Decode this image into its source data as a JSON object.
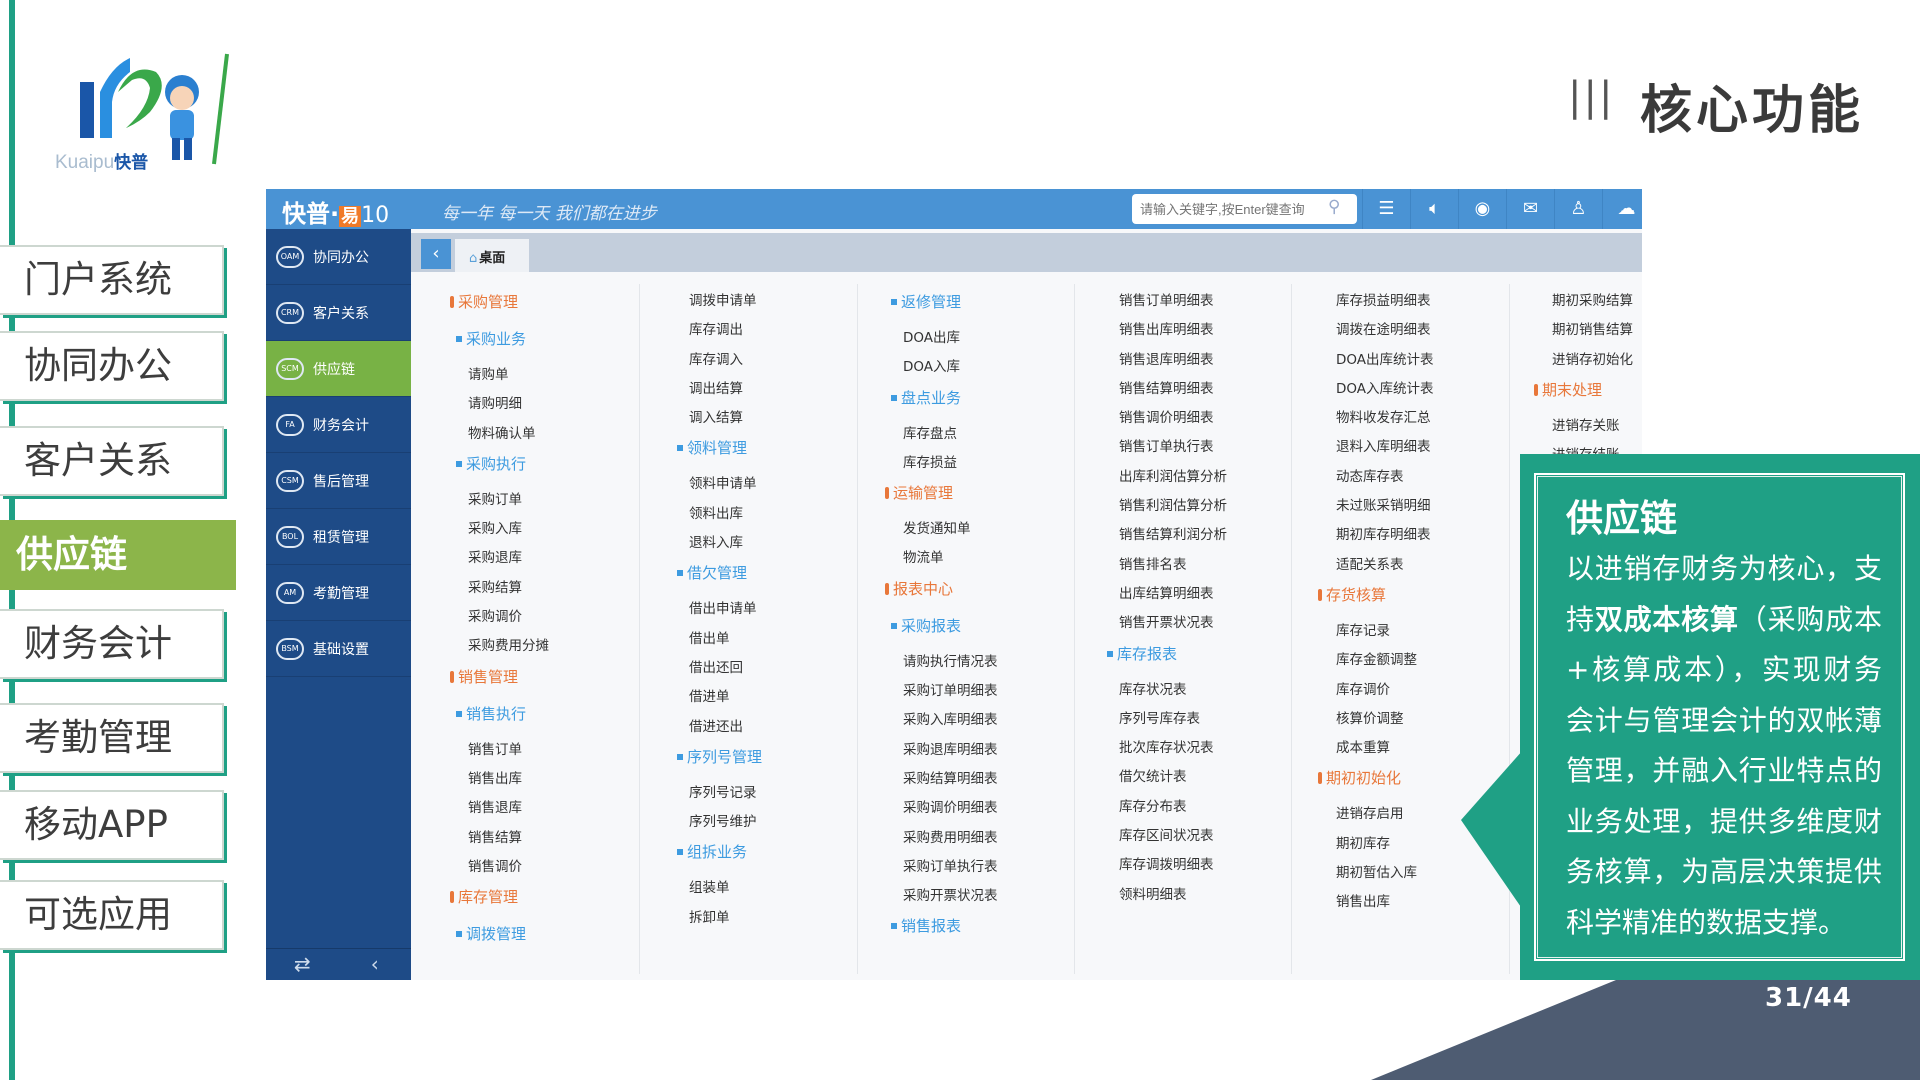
{
  "logo": {
    "text_latin": "Kuaipu",
    "text_cn": "快普"
  },
  "nav": {
    "items": [
      {
        "label": "门户系统",
        "active": false
      },
      {
        "label": "协同办公",
        "active": false
      },
      {
        "label": "客户关系",
        "active": false
      },
      {
        "label": "供应链",
        "active": true
      },
      {
        "label": "财务会计",
        "active": false
      },
      {
        "label": "考勤管理",
        "active": false
      },
      {
        "label": "移动APP",
        "active": false
      },
      {
        "label": "可选应用",
        "active": false
      }
    ]
  },
  "header": {
    "title_bars": "|||",
    "title": "核心功能"
  },
  "app": {
    "brand": "快普·",
    "brand_yi": "易",
    "brand_ver": "10",
    "slogan": "每一年 每一天 我们都在进步",
    "search_placeholder": "请输入关键字,按Enter键查询",
    "header_icons": [
      "list-icon",
      "speaker-icon",
      "im-chat-icon",
      "mail-icon",
      "user-icon",
      "cloud-icon"
    ],
    "sidebar": [
      {
        "abbr": "OAM",
        "label": "协同办公"
      },
      {
        "abbr": "CRM",
        "label": "客户关系"
      },
      {
        "abbr": "SCM",
        "label": "供应链",
        "active": true
      },
      {
        "abbr": "FA",
        "label": "财务会计"
      },
      {
        "abbr": "CSM",
        "label": "售后管理"
      },
      {
        "abbr": "BOL",
        "label": "租赁管理"
      },
      {
        "abbr": "AM",
        "label": "考勤管理"
      },
      {
        "abbr": "BSM",
        "label": "基础设置"
      }
    ],
    "tab_label": "桌面",
    "columns": [
      [
        [
          "h1",
          "采购管理"
        ],
        [
          "h2",
          "采购业务"
        ],
        [
          "i",
          "请购单"
        ],
        [
          "i",
          "请购明细"
        ],
        [
          "i",
          "物料确认单"
        ],
        [
          "h2",
          "采购执行"
        ],
        [
          "i",
          "采购订单"
        ],
        [
          "i",
          "采购入库"
        ],
        [
          "i",
          "采购退库"
        ],
        [
          "i",
          "采购结算"
        ],
        [
          "i",
          "采购调价"
        ],
        [
          "i",
          "采购费用分摊"
        ],
        [
          "h1",
          "销售管理"
        ],
        [
          "h2",
          "销售执行"
        ],
        [
          "i",
          "销售订单"
        ],
        [
          "i",
          "销售出库"
        ],
        [
          "i",
          "销售退库"
        ],
        [
          "i",
          "销售结算"
        ],
        [
          "i",
          "销售调价"
        ],
        [
          "h1",
          "库存管理"
        ],
        [
          "h2",
          "调拨管理"
        ]
      ],
      [
        [
          "i",
          "调拨申请单"
        ],
        [
          "i",
          "库存调出"
        ],
        [
          "i",
          "库存调入"
        ],
        [
          "i",
          "调出结算"
        ],
        [
          "i",
          "调入结算"
        ],
        [
          "h2",
          "领料管理"
        ],
        [
          "i",
          "领料申请单"
        ],
        [
          "i",
          "领料出库"
        ],
        [
          "i",
          "退料入库"
        ],
        [
          "h2",
          "借欠管理"
        ],
        [
          "i",
          "借出申请单"
        ],
        [
          "i",
          "借出单"
        ],
        [
          "i",
          "借出还回"
        ],
        [
          "i",
          "借进单"
        ],
        [
          "i",
          "借进还出"
        ],
        [
          "h2",
          "序列号管理"
        ],
        [
          "i",
          "序列号记录"
        ],
        [
          "i",
          "序列号维护"
        ],
        [
          "h2",
          "组拆业务"
        ],
        [
          "i",
          "组装单"
        ],
        [
          "i",
          "拆卸单"
        ]
      ],
      [
        [
          "h2",
          "返修管理"
        ],
        [
          "i",
          "DOA出库"
        ],
        [
          "i",
          "DOA入库"
        ],
        [
          "h2",
          "盘点业务"
        ],
        [
          "i",
          "库存盘点"
        ],
        [
          "i",
          "库存损益"
        ],
        [
          "h1",
          "运输管理"
        ],
        [
          "i",
          "发货通知单"
        ],
        [
          "i",
          "物流单"
        ],
        [
          "h1",
          "报表中心"
        ],
        [
          "h2",
          "采购报表"
        ],
        [
          "i",
          "请购执行情况表"
        ],
        [
          "i",
          "采购订单明细表"
        ],
        [
          "i",
          "采购入库明细表"
        ],
        [
          "i",
          "采购退库明细表"
        ],
        [
          "i",
          "采购结算明细表"
        ],
        [
          "i",
          "采购调价明细表"
        ],
        [
          "i",
          "采购费用明细表"
        ],
        [
          "i",
          "采购订单执行表"
        ],
        [
          "i",
          "采购开票状况表"
        ],
        [
          "h2",
          "销售报表"
        ]
      ],
      [
        [
          "i",
          "销售订单明细表"
        ],
        [
          "i",
          "销售出库明细表"
        ],
        [
          "i",
          "销售退库明细表"
        ],
        [
          "i",
          "销售结算明细表"
        ],
        [
          "i",
          "销售调价明细表"
        ],
        [
          "i",
          "销售订单执行表"
        ],
        [
          "i",
          "出库利润估算分析"
        ],
        [
          "i",
          "销售利润估算分析"
        ],
        [
          "i",
          "销售结算利润分析"
        ],
        [
          "i",
          "销售排名表"
        ],
        [
          "i",
          "出库结算明细表"
        ],
        [
          "i",
          "销售开票状况表"
        ],
        [
          "h2",
          "库存报表"
        ],
        [
          "i",
          "库存状况表"
        ],
        [
          "i",
          "序列号库存表"
        ],
        [
          "i",
          "批次库存状况表"
        ],
        [
          "i",
          "借欠统计表"
        ],
        [
          "i",
          "库存分布表"
        ],
        [
          "i",
          "库存区间状况表"
        ],
        [
          "i",
          "库存调拨明细表"
        ],
        [
          "i",
          "领料明细表"
        ]
      ],
      [
        [
          "i",
          "库存损益明细表"
        ],
        [
          "i",
          "调拨在途明细表"
        ],
        [
          "i",
          "DOA出库统计表"
        ],
        [
          "i",
          "DOA入库统计表"
        ],
        [
          "i",
          "物料收发存汇总"
        ],
        [
          "i",
          "退料入库明细表"
        ],
        [
          "i",
          "动态库存表"
        ],
        [
          "i",
          "未过账采销明细"
        ],
        [
          "i",
          "期初库存明细表"
        ],
        [
          "i",
          "适配关系表"
        ],
        [
          "h1",
          "存货核算"
        ],
        [
          "i",
          "库存记录"
        ],
        [
          "i",
          "库存金额调整"
        ],
        [
          "i",
          "库存调价"
        ],
        [
          "i",
          "核算价调整"
        ],
        [
          "i",
          "成本重算"
        ],
        [
          "h1",
          "期初初始化"
        ],
        [
          "i",
          "进销存启用"
        ],
        [
          "i",
          "期初库存"
        ],
        [
          "i",
          "期初暂估入库"
        ],
        [
          "i",
          "销售出库"
        ]
      ],
      [
        [
          "i",
          "期初采购结算"
        ],
        [
          "i",
          "期初销售结算"
        ],
        [
          "i",
          "进销存初始化"
        ],
        [
          "h1",
          "期末处理"
        ],
        [
          "i",
          "进销存关账"
        ],
        [
          "i",
          "进销存结账"
        ]
      ]
    ]
  },
  "callout": {
    "title": "供应链",
    "body_before": "以进销存财务为核心，支持",
    "body_bold": "双成本核算",
    "body_after": "（采购成本+核算成本），实现财务会计与管理会计的双帐薄管理，并融入行业特点的业务处理，提供多维度财务核算，为高层决策提供科学精准的数据支撑。"
  },
  "pager": "31/44",
  "colors": {
    "accent_green": "#1fa085",
    "active_nav": "#8cb54a",
    "app_blue": "#4a93d4",
    "sidebar_blue": "#1e4b87",
    "section_orange": "#e8773a",
    "subsection_blue": "#3d9be0",
    "slate": "#4e5c72"
  }
}
